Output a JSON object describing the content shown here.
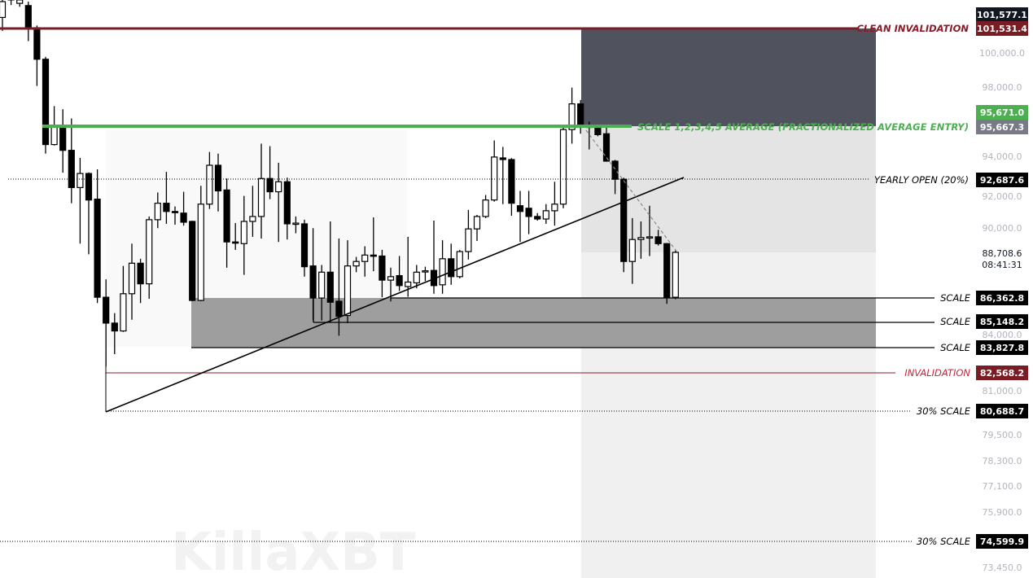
{
  "chart_data": {
    "type": "candlestick",
    "y_scale": "log",
    "grid": false,
    "y_ticks": [
      "100,000.0",
      "98,000.0",
      "94,000.0",
      "92,000.0",
      "90,000.0",
      "84,000.0",
      "81,000.0",
      "79,500.0",
      "78,300.0",
      "77,100.0",
      "75,900.0",
      "73,450.0"
    ],
    "y_tick_values": [
      100000,
      98000,
      94000,
      92000,
      90000,
      84000,
      81000,
      79500,
      78300,
      77100,
      75900,
      73450
    ],
    "candles_ohlc": [
      [
        102075,
        103300,
        101290,
        103000
      ],
      [
        103100,
        103500,
        102800,
        103300
      ],
      [
        102900,
        103200,
        102700,
        103100
      ],
      [
        102770,
        103000,
        100690,
        101475
      ],
      [
        101475,
        101600,
        98065,
        99630
      ],
      [
        99630,
        99770,
        94150,
        94650
      ],
      [
        94650,
        96865,
        94600,
        95665
      ],
      [
        95665,
        96680,
        93085,
        94330
      ],
      [
        94330,
        96130,
        91380,
        92255
      ],
      [
        92255,
        93910,
        89170,
        93040
      ],
      [
        93040,
        93100,
        88610,
        91560
      ],
      [
        91610,
        93270,
        86110,
        86400
      ],
      [
        86400,
        87320,
        82880,
        85110
      ],
      [
        85110,
        85610,
        83500,
        84700
      ],
      [
        84700,
        88010,
        84650,
        86580
      ],
      [
        86580,
        89170,
        85280,
        88150
      ],
      [
        88150,
        88380,
        86110,
        87090
      ],
      [
        87090,
        90640,
        86320,
        90460
      ],
      [
        90460,
        91980,
        89990,
        91380
      ],
      [
        91380,
        93130,
        90230,
        90920
      ],
      [
        90920,
        91200,
        90180,
        90870
      ],
      [
        90830,
        92020,
        90130,
        90320
      ],
      [
        90365,
        90400,
        86200,
        86240
      ],
      [
        86240,
        92350,
        86200,
        91330
      ],
      [
        91330,
        94240,
        91060,
        93500
      ],
      [
        93500,
        94150,
        90920,
        92070
      ],
      [
        92120,
        92760,
        87920,
        89260
      ],
      [
        89260,
        90270,
        88840,
        89210
      ],
      [
        89170,
        91790,
        87550,
        90365
      ],
      [
        90365,
        92350,
        89530,
        90640
      ],
      [
        90640,
        94700,
        89440,
        92760
      ],
      [
        92760,
        94560,
        91610,
        92020
      ],
      [
        92020,
        93640,
        89260,
        92580
      ],
      [
        92580,
        92810,
        89390,
        90230
      ],
      [
        90230,
        90640,
        89720,
        90270
      ],
      [
        90230,
        90460,
        87460,
        87970
      ],
      [
        88010,
        89990,
        85240,
        86360
      ],
      [
        86360,
        88060,
        85240,
        87690
      ],
      [
        87690,
        90365,
        85150,
        86150
      ],
      [
        86200,
        89440,
        84450,
        85450
      ],
      [
        85490,
        89350,
        85110,
        88010
      ],
      [
        88010,
        88475,
        87690,
        88240
      ],
      [
        88240,
        89030,
        87460,
        88570
      ],
      [
        88570,
        90590,
        87740,
        88520
      ],
      [
        88520,
        88840,
        86400,
        87280
      ],
      [
        87280,
        87920,
        86190,
        87460
      ],
      [
        87510,
        88520,
        86720,
        87000
      ],
      [
        86950,
        89530,
        86420,
        87180
      ],
      [
        87140,
        88060,
        86860,
        87690
      ],
      [
        87740,
        87970,
        87230,
        87760
      ],
      [
        87780,
        90410,
        86580,
        87000
      ],
      [
        87040,
        89350,
        86580,
        88380
      ],
      [
        88380,
        89170,
        87040,
        87460
      ],
      [
        87460,
        88840,
        87370,
        88750
      ],
      [
        88750,
        91010,
        88340,
        89950
      ],
      [
        89950,
        90730,
        89310,
        90640
      ],
      [
        90640,
        91840,
        90550,
        91560
      ],
      [
        91560,
        94880,
        91470,
        93960
      ],
      [
        93910,
        94520,
        91330,
        93820
      ],
      [
        93820,
        93900,
        90680,
        91380
      ],
      [
        91240,
        92070,
        89260,
        90920
      ],
      [
        91100,
        92070,
        89670,
        90640
      ],
      [
        90640,
        90830,
        90410,
        90500
      ],
      [
        90500,
        91330,
        90230,
        90960
      ],
      [
        90960,
        92580,
        90130,
        91330
      ],
      [
        91330,
        95620,
        91100,
        95480
      ],
      [
        95480,
        97970,
        94700,
        97000
      ],
      [
        97000,
        97230,
        95250,
        95665
      ],
      [
        95665,
        95940,
        94380,
        95620
      ],
      [
        95620,
        95620,
        95110,
        95200
      ],
      [
        95250,
        95620,
        93700,
        93730
      ],
      [
        93730,
        93800,
        91890,
        92720
      ],
      [
        92720,
        92800,
        87690,
        88240
      ],
      [
        88240,
        90550,
        87090,
        89390
      ],
      [
        89390,
        90365,
        88380,
        89490
      ],
      [
        89490,
        91240,
        88520,
        89530
      ],
      [
        89530,
        89900,
        89070,
        89170
      ],
      [
        89170,
        89200,
        86070,
        86400
      ],
      [
        86400,
        88800,
        86300,
        88708.6
      ]
    ],
    "levels": [
      {
        "name": "clean-invalidation",
        "label": "CLEAN INVALIDATION",
        "value": 101531.4,
        "value_text": "101,531.4",
        "color": "#7b1c25"
      },
      {
        "name": "average-entry",
        "label": "SCALE 1,2,3,4,5 AVERAGE (FRACTIONALIZED AVERAGE ENTRY)",
        "value": 95667.3,
        "value_text": "95,667.3",
        "color": "#4caf50"
      },
      {
        "name": "yearly-open",
        "label": "YEARLY OPEN (20%)",
        "value": 92687.6,
        "value_text": "92,687.6",
        "color": "#000000"
      },
      {
        "name": "scale-1",
        "label": "SCALE",
        "value": 86362.8,
        "value_text": "86,362.8",
        "color": "#000000"
      },
      {
        "name": "scale-2",
        "label": "SCALE",
        "value": 85148.2,
        "value_text": "85,148.2",
        "color": "#000000"
      },
      {
        "name": "scale-3",
        "label": "SCALE",
        "value": 83827.8,
        "value_text": "83,827.8",
        "color": "#000000"
      },
      {
        "name": "invalidation",
        "label": "INVALIDATION",
        "value": 82568.2,
        "value_text": "82,568.2",
        "color": "#b71c2b"
      },
      {
        "name": "thirty-pct-scale-1",
        "label": "30% SCALE",
        "value": 80688.7,
        "value_text": "80,688.7",
        "color": "#000000"
      },
      {
        "name": "thirty-pct-scale-2",
        "label": "30% SCALE",
        "value": 74599.9,
        "value_text": "74,599.9",
        "color": "#000000"
      }
    ],
    "extra_price_labels": {
      "high_marker": "101,577.1",
      "green_marker": "95,671.0",
      "last_price": "88,708.6",
      "countdown": "08:41:31"
    }
  },
  "watermark": "KillaXBT",
  "colors": {
    "bull": "#ffffff",
    "bear": "#000000",
    "dark_zone": "#50535e",
    "navy_label": "#131722",
    "gray_label": "#787b86",
    "green_label": "#4caf50"
  }
}
